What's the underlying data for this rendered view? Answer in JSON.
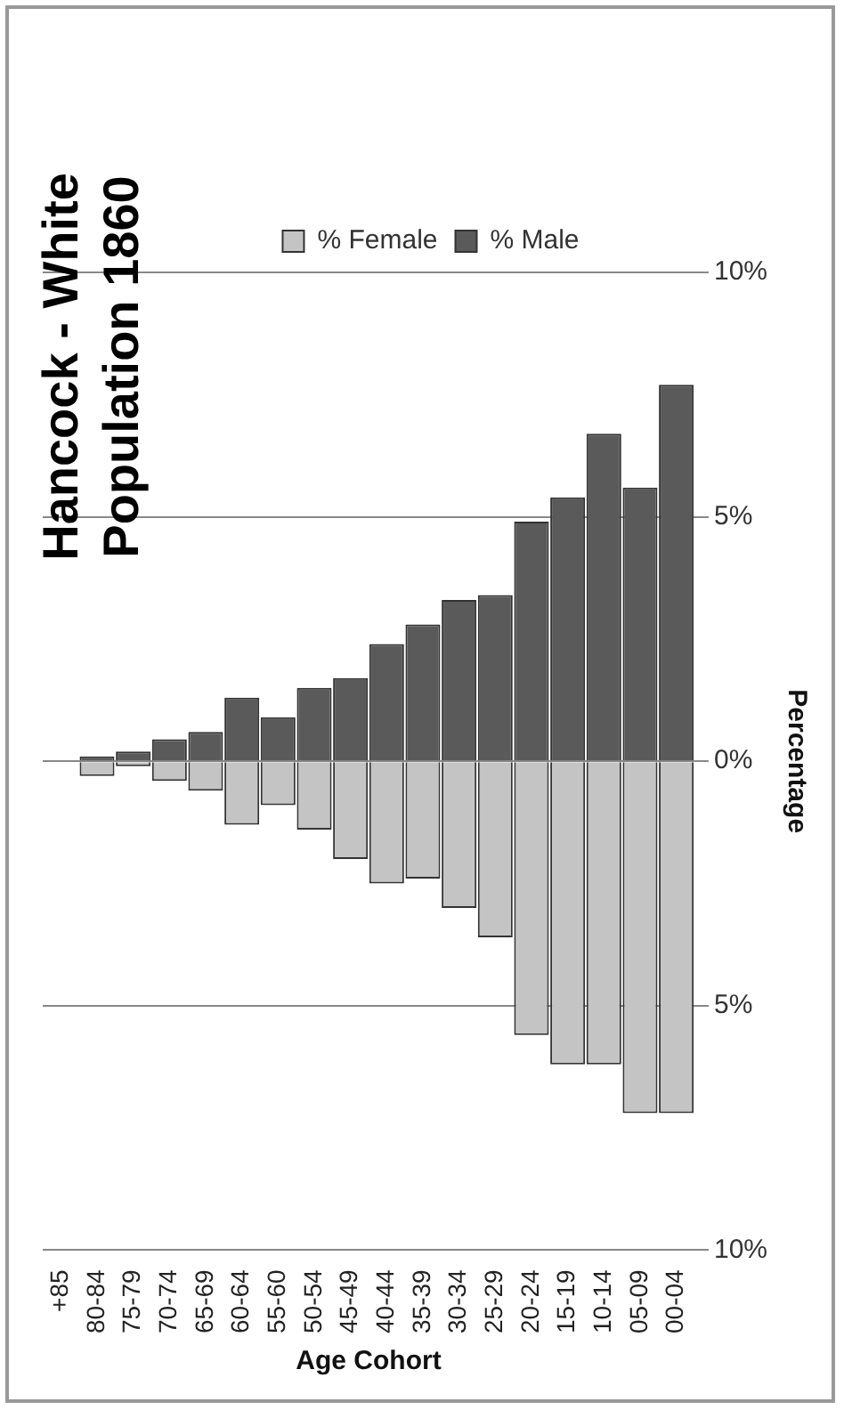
{
  "chart_data": {
    "type": "bar",
    "title": "Hancock - White Population 1860",
    "xlabel": "Age Cohort",
    "ylabel": "Percentage",
    "stacked": true,
    "categories": [
      "+85",
      "80-84",
      "75-79",
      "70-74",
      "65-69",
      "60-64",
      "55-60",
      "50-54",
      "45-49",
      "40-44",
      "35-39",
      "30-34",
      "25-29",
      "20-24",
      "15-19",
      "10-14",
      "05-09",
      "00-04"
    ],
    "series": [
      {
        "name": "% Female",
        "color": "#c4c4c4",
        "values": [
          0,
          -0.3,
          -0.1,
          -0.4,
          -0.6,
          -1.3,
          -0.9,
          -1.4,
          -2.0,
          -2.5,
          -2.4,
          -3.0,
          -3.6,
          -5.6,
          -6.2,
          -6.2,
          -7.2,
          -7.2
        ]
      },
      {
        "name": "% Male",
        "color": "#5a5a5a",
        "values": [
          0,
          0.1,
          0.2,
          0.45,
          0.6,
          1.3,
          0.9,
          1.5,
          1.7,
          2.4,
          2.8,
          3.3,
          3.4,
          4.9,
          5.4,
          6.7,
          5.6,
          7.7
        ]
      }
    ],
    "ylim": [
      -10,
      10
    ],
    "yticks": [
      {
        "value": -10,
        "label": "10%"
      },
      {
        "value": -5,
        "label": "5%"
      },
      {
        "value": 0,
        "label": "0%"
      },
      {
        "value": 5,
        "label": "5%"
      },
      {
        "value": 10,
        "label": "10%"
      }
    ],
    "grid": "y",
    "legend": "top"
  }
}
